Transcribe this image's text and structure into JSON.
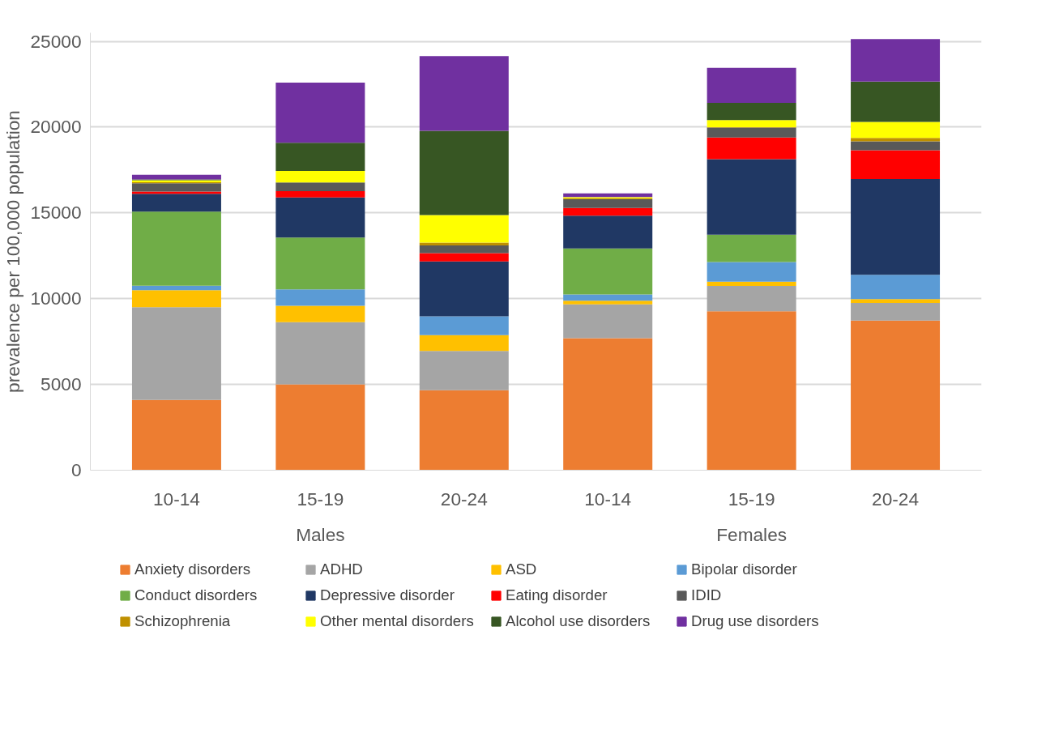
{
  "chart_data": {
    "type": "bar",
    "stacked": true,
    "ylabel": "prevalence per 100,000 population",
    "categories": [
      "10-14",
      "15-19",
      "20-24",
      "10-14",
      "15-19",
      "20-24"
    ],
    "annotations": [
      "Males",
      "Females"
    ],
    "ylim": [
      0,
      25500
    ],
    "yticks": [
      0,
      5000,
      10000,
      15000,
      20000,
      25000
    ],
    "grid": "y",
    "legend": "bottom",
    "series": [
      {
        "name": "Anxiety disorders",
        "color": "#ed7d31",
        "values": [
          4100,
          5000,
          4660,
          7700,
          9270,
          8730
        ]
      },
      {
        "name": "ADHD",
        "color": "#a5a5a5",
        "values": [
          5400,
          3630,
          2290,
          1970,
          1475,
          1020
        ]
      },
      {
        "name": "ASD",
        "color": "#ffc000",
        "values": [
          1000,
          960,
          925,
          215,
          245,
          220
        ]
      },
      {
        "name": "Bipolar disorder",
        "color": "#5b9bd5",
        "values": [
          250,
          955,
          1095,
          365,
          1145,
          1420
        ]
      },
      {
        "name": "Conduct disorders",
        "color": "#70ad47",
        "values": [
          4330,
          3015,
          0,
          2680,
          1600,
          0
        ]
      },
      {
        "name": "Depressive disorder",
        "color": "#203864",
        "values": [
          1030,
          2340,
          3200,
          1915,
          4395,
          5590
        ]
      },
      {
        "name": "Eating disorder",
        "color": "#ff0000",
        "values": [
          140,
          365,
          480,
          445,
          1270,
          1670
        ]
      },
      {
        "name": "IDID",
        "color": "#595959",
        "values": [
          480,
          515,
          450,
          510,
          570,
          525
        ]
      },
      {
        "name": "Schizophrenia",
        "color": "#bf9000",
        "values": [
          60,
          null,
          170,
          50,
          30,
          195
        ]
      },
      {
        "name": "Other mental disorders",
        "color": "#ffff00",
        "values": [
          110,
          670,
          1610,
          70,
          410,
          930
        ]
      },
      {
        "name": "Alcohol use disorders",
        "color": "#375623",
        "values": [
          50,
          1640,
          4910,
          null,
          1000,
          2350
        ]
      },
      {
        "name": "Drug use disorders",
        "color": "#7030a0",
        "values": [
          270,
          3500,
          4350,
          220,
          2050,
          2480
        ]
      }
    ]
  }
}
